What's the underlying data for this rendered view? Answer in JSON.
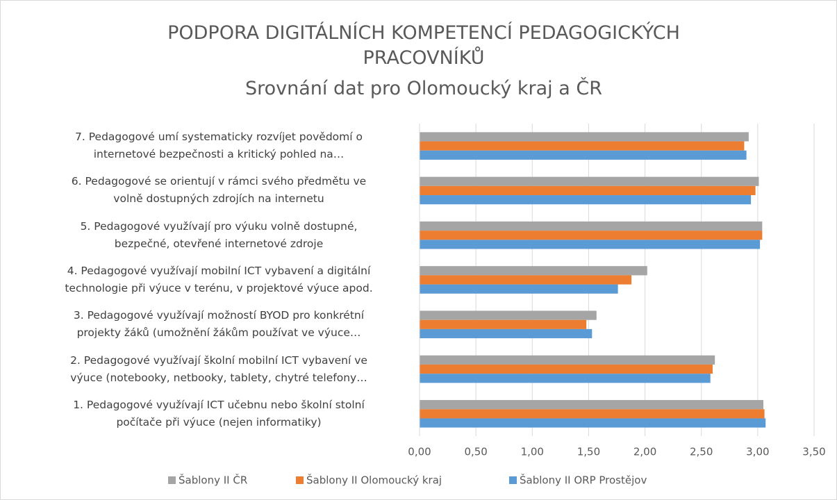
{
  "chart_data": {
    "type": "hbar",
    "title": "PODPORA DIGITÁLNÍCH KOMPETENCÍ PEDAGOGICKÝCH PRACOVNÍKŮ",
    "subtitle": "Srovnání dat pro Olomoucký kraj a ČR",
    "categories": [
      "1. Pedagogové využívají ICT učebnu nebo školní stolní\npočítače při výuce (nejen informatiky)",
      "2. Pedagogové využívají školní mobilní ICT vybavení ve\nvýuce (notebooky, netbooky, tablety, chytré telefony…",
      "3. Pedagogové využívají možností BYOD pro konkrétní\nprojekty žáků (umožnění žákům používat ve výuce…",
      "4. Pedagogové využívají mobilní ICT vybavení a digitální\ntechnologie při výuce v terénu, v projektové výuce apod.",
      "5. Pedagogové využívají pro výuku volně dostupné,\nbezpečné, otevřené internetové zdroje",
      "6. Pedagogové se orientují v rámci svého předmětu ve\nvolně dostupných zdrojích na internetu",
      "7. Pedagogové umí systematicky rozvíjet povědomí o\ninternetové bezpečnosti a  kritický pohled na…"
    ],
    "series": [
      {
        "name": "Šablony II ČR",
        "color": "#a5a5a5",
        "values": [
          3.05,
          2.62,
          1.57,
          2.02,
          3.04,
          3.01,
          2.92
        ]
      },
      {
        "name": "Šablony II Olomoucký kraj",
        "color": "#ed7d31",
        "values": [
          3.06,
          2.6,
          1.48,
          1.88,
          3.04,
          2.98,
          2.88
        ]
      },
      {
        "name": "Šablony II ORP Prostějov",
        "color": "#5b9bd5",
        "values": [
          3.07,
          2.58,
          1.53,
          1.76,
          3.02,
          2.94,
          2.9
        ]
      }
    ],
    "xlim": [
      0,
      3.5
    ],
    "xticks": [
      {
        "value": 0,
        "label": "0,00"
      },
      {
        "value": 0.5,
        "label": "0,50"
      },
      {
        "value": 1,
        "label": "1,00"
      },
      {
        "value": 1.5,
        "label": "1,50"
      },
      {
        "value": 2,
        "label": "2,00"
      },
      {
        "value": 2.5,
        "label": "2,50"
      },
      {
        "value": 3,
        "label": "3,00"
      },
      {
        "value": 3.5,
        "label": "3,50"
      }
    ],
    "grid": true,
    "legend": "bottom"
  }
}
